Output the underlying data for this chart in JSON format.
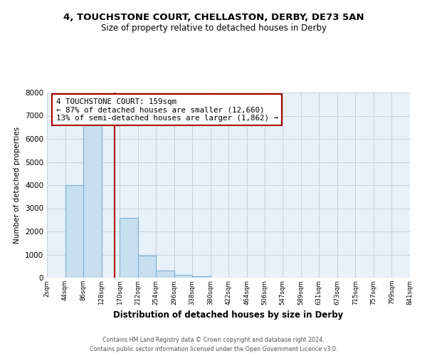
{
  "title": "4, TOUCHSTONE COURT, CHELLASTON, DERBY, DE73 5AN",
  "subtitle": "Size of property relative to detached houses in Derby",
  "xlabel": "Distribution of detached houses by size in Derby",
  "ylabel": "Number of detached properties",
  "footer_line1": "Contains HM Land Registry data © Crown copyright and database right 2024.",
  "footer_line2": "Contains public sector information licensed under the Open Government Licence v3.0.",
  "annotation_line1": "4 TOUCHSTONE COURT: 159sqm",
  "annotation_line2": "← 87% of detached houses are smaller (12,660)",
  "annotation_line3": "13% of semi-detached houses are larger (1,862) →",
  "bar_edges": [
    2,
    44,
    86,
    128,
    170,
    212,
    254,
    296,
    338,
    380,
    422,
    464,
    506,
    547,
    589,
    631,
    673,
    715,
    757,
    799,
    841
  ],
  "bar_heights": [
    0,
    4000,
    6600,
    0,
    2600,
    950,
    320,
    120,
    75,
    0,
    0,
    0,
    0,
    0,
    0,
    0,
    0,
    0,
    0,
    0
  ],
  "bar_color": "#c8dff0",
  "bar_edgecolor": "#7ab0d4",
  "property_line_x": 159,
  "property_line_color": "#aa0000",
  "annotation_box_edgecolor": "#aa0000",
  "ylim": [
    0,
    8000
  ],
  "xlim": [
    2,
    841
  ],
  "tick_labels": [
    "2sqm",
    "44sqm",
    "86sqm",
    "128sqm",
    "170sqm",
    "212sqm",
    "254sqm",
    "296sqm",
    "338sqm",
    "380sqm",
    "422sqm",
    "464sqm",
    "506sqm",
    "547sqm",
    "589sqm",
    "631sqm",
    "673sqm",
    "715sqm",
    "757sqm",
    "799sqm",
    "841sqm"
  ],
  "tick_positions": [
    2,
    44,
    86,
    128,
    170,
    212,
    254,
    296,
    338,
    380,
    422,
    464,
    506,
    547,
    589,
    631,
    673,
    715,
    757,
    799,
    841
  ],
  "background_color": "#ffffff",
  "axes_bg_color": "#e8f0f8",
  "grid_color": "#c0ccd8"
}
